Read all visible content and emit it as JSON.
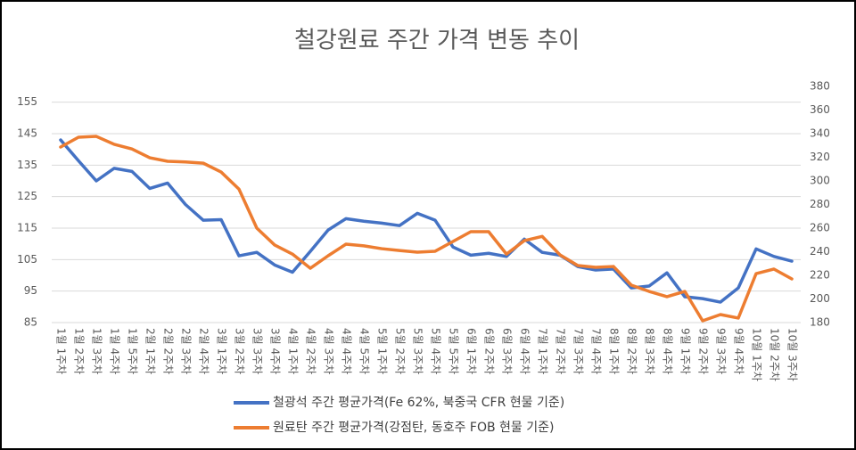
{
  "chart_data": {
    "type": "line",
    "title": "철강원료 주간 가격 변동 추이",
    "categories": [
      "1월 1주차",
      "1월 2주차",
      "1월 3주차",
      "1월 4주차",
      "1월 5주차",
      "2월 1주차",
      "2월 2주차",
      "2월 3주차",
      "2월 4주차",
      "3월 1주차",
      "3월 2주차",
      "3월 3주차",
      "3월 4주차",
      "4월 1주차",
      "4월 2주차",
      "4월 3주차",
      "4월 4주차",
      "4월 5주차",
      "5월 1주차",
      "5월 2주차",
      "5월 3주차",
      "5월 4주차",
      "5월 5주차",
      "6월 1주차",
      "6월 2주차",
      "6월 3주차",
      "6월 4주차",
      "7월 1주차",
      "7월 2주차",
      "7월 3주차",
      "7월 4주차",
      "8월 1주차",
      "8월 2주차",
      "8월 3주차",
      "8월 4주차",
      "9월 1주차",
      "9월 2주차",
      "9월 3주차",
      "9월 4주차",
      "10월 1주차",
      "10월 2주차",
      "10월 3주차"
    ],
    "series": [
      {
        "name": "철광석 주간 평균가격(Fe 62%, 북중국 CFR 현물 기준)",
        "color": "#4472c4",
        "axis": "y",
        "values": [
          143,
          136.4,
          130,
          134,
          133,
          127.6,
          129.3,
          122.5,
          117.5,
          117.7,
          106.2,
          107.3,
          103.3,
          101,
          107.6,
          114.4,
          118,
          117.2,
          116.6,
          115.8,
          119.7,
          117.5,
          109,
          106.4,
          107,
          106,
          111.5,
          107.3,
          106.4,
          102.8,
          101.7,
          102,
          96,
          96.6,
          100.8,
          93.2,
          92.6,
          91.5,
          96,
          108.4,
          106,
          104.5
        ]
      },
      {
        "name": "원료탄 주간 평균가격(강점탄, 동호주 FOB 현물 기준)",
        "color": "#ed7d31",
        "axis": "y2",
        "values": [
          328.7,
          337,
          337.7,
          331,
          327,
          319.6,
          316.6,
          316,
          315,
          307.5,
          293,
          260,
          245.7,
          238,
          226,
          236.6,
          246.4,
          245,
          242.6,
          241,
          239.6,
          240.4,
          248.7,
          257,
          257,
          238,
          249.4,
          253,
          237.4,
          228.3,
          226.8,
          227.5,
          211.7,
          206.4,
          201.9,
          206.4,
          181.5,
          186.8,
          183.8,
          221.5,
          225.3,
          217
        ]
      }
    ],
    "ylim": [
      85,
      160
    ],
    "yticks": [
      85,
      95,
      105,
      115,
      125,
      135,
      145,
      155
    ],
    "y2lim": [
      180,
      380
    ],
    "y2ticks": [
      180,
      200,
      220,
      240,
      260,
      280,
      300,
      320,
      340,
      360,
      380
    ],
    "grid": true
  }
}
